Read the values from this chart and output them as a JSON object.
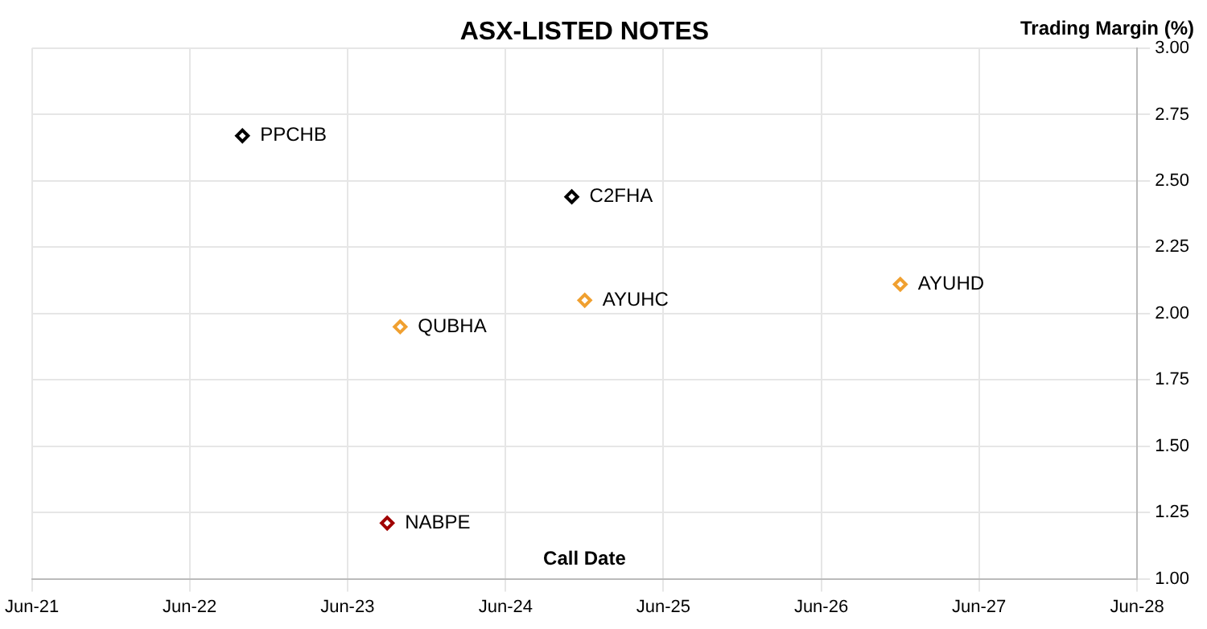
{
  "chart_data": {
    "type": "scatter",
    "title": "ASX-LISTED NOTES",
    "xlabel": "Call Date",
    "ylabel": "Trading Margin (%)",
    "series": [
      {
        "name": "PPCHB",
        "color": "#000000",
        "x": [
          "2022-10"
        ],
        "values": [
          2.67
        ]
      },
      {
        "name": "C2FHA",
        "color": "#000000",
        "x": [
          "2024-11"
        ],
        "values": [
          2.44
        ]
      },
      {
        "name": "AYUHC",
        "color": "#f0a030",
        "x": [
          "2024-12"
        ],
        "values": [
          2.05
        ]
      },
      {
        "name": "QUBHA",
        "color": "#f0a030",
        "x": [
          "2023-10"
        ],
        "values": [
          1.95
        ]
      },
      {
        "name": "AYUHD",
        "color": "#f0a030",
        "x": [
          "2026-12"
        ],
        "values": [
          2.11
        ]
      },
      {
        "name": "NABPE",
        "color": "#a00000",
        "x": [
          "2023-09"
        ],
        "values": [
          1.21
        ]
      }
    ],
    "xlim": [
      "2021-06",
      "2028-06"
    ],
    "xticks": [
      {
        "value": "2021-06",
        "label": "Jun-21"
      },
      {
        "value": "2022-06",
        "label": "Jun-22"
      },
      {
        "value": "2023-06",
        "label": "Jun-23"
      },
      {
        "value": "2024-06",
        "label": "Jun-24"
      },
      {
        "value": "2025-06",
        "label": "Jun-25"
      },
      {
        "value": "2026-06",
        "label": "Jun-26"
      },
      {
        "value": "2027-06",
        "label": "Jun-27"
      },
      {
        "value": "2028-06",
        "label": "Jun-28"
      }
    ],
    "ylim": [
      1,
      3
    ],
    "yticks": [
      {
        "value": 1,
        "label": "1.00"
      },
      {
        "value": 1.25,
        "label": "1.25"
      },
      {
        "value": 1.5,
        "label": "1.50"
      },
      {
        "value": 1.75,
        "label": "1.75"
      },
      {
        "value": 2,
        "label": "2.00"
      },
      {
        "value": 2.25,
        "label": "2.25"
      },
      {
        "value": 2.5,
        "label": "2.50"
      },
      {
        "value": 2.75,
        "label": "2.75"
      },
      {
        "value": 3,
        "label": "3.00"
      }
    ],
    "grid": true,
    "marker": "diamond",
    "legend": false
  }
}
